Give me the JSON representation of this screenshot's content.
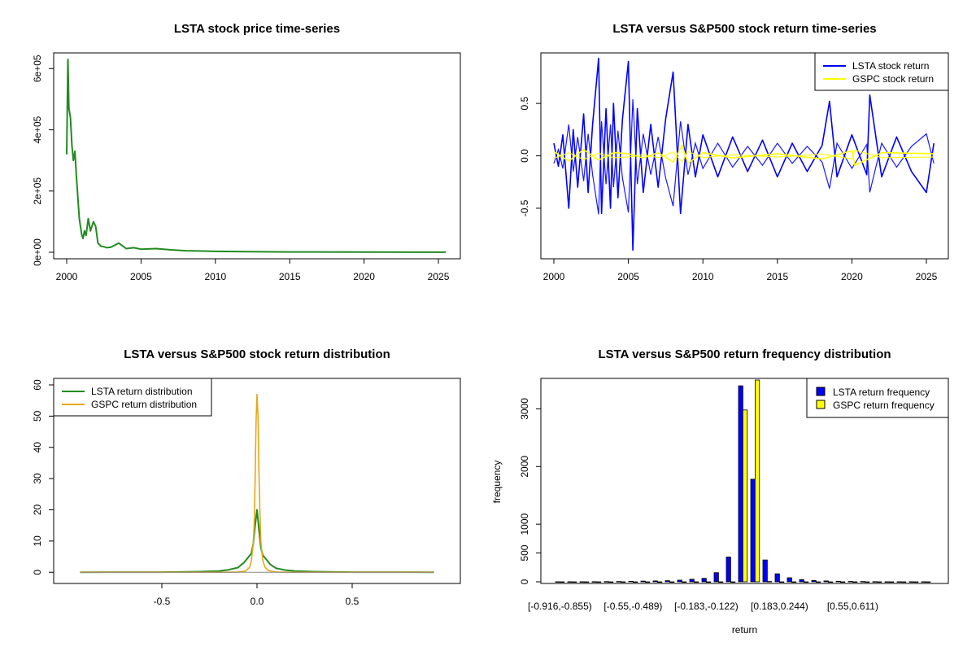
{
  "chart_data": [
    {
      "type": "line",
      "title": "LSTA stock price time-series",
      "xlabel": "",
      "ylabel": "",
      "xlim": [
        2000,
        2025.6
      ],
      "ylim": [
        0,
        630000
      ],
      "xticks": [
        2000,
        2005,
        2010,
        2015,
        2020,
        2025
      ],
      "xtick_labels": [
        "2000",
        "2005",
        "2010",
        "2015",
        "2020",
        "2025"
      ],
      "yticks": [
        0,
        200000,
        400000,
        600000
      ],
      "ytick_labels": [
        "0e+00",
        "2e+05",
        "4e+05",
        "6e+05"
      ],
      "grid": false,
      "series": [
        {
          "color": "#228B22",
          "x": [
            2000.0,
            2000.08,
            2000.15,
            2000.25,
            2000.35,
            2000.45,
            2000.55,
            2000.65,
            2000.75,
            2000.85,
            2001.0,
            2001.1,
            2001.2,
            2001.3,
            2001.45,
            2001.6,
            2001.8,
            2001.95,
            2002.1,
            2002.3,
            2002.5,
            2002.7,
            2003.0,
            2003.5,
            2004.0,
            2004.5,
            2005.0,
            2006.0,
            2007.0,
            2008.0,
            2010.0,
            2012.0,
            2015.0,
            2020.0,
            2025.5
          ],
          "y": [
            320000,
            630000,
            470000,
            440000,
            350000,
            300000,
            330000,
            250000,
            180000,
            110000,
            60000,
            45000,
            70000,
            55000,
            110000,
            70000,
            100000,
            85000,
            30000,
            20000,
            18000,
            15000,
            17000,
            30000,
            12000,
            15000,
            10000,
            12000,
            8000,
            5000,
            3000,
            2000,
            1000,
            500,
            300
          ]
        }
      ]
    },
    {
      "type": "line",
      "title": "LSTA versus S&P500 stock return time-series",
      "xlabel": "",
      "ylabel": "",
      "xlim": [
        2000,
        2025.6
      ],
      "ylim": [
        -0.92,
        0.92
      ],
      "xticks": [
        2000,
        2005,
        2010,
        2015,
        2020,
        2025
      ],
      "xtick_labels": [
        "2000",
        "2005",
        "2010",
        "2015",
        "2020",
        "2025"
      ],
      "yticks": [
        -0.5,
        0.0,
        0.5
      ],
      "ytick_labels": [
        "-0.5",
        "0.0",
        "0.5"
      ],
      "grid": false,
      "legend_position": "top-right",
      "series": [
        {
          "name": "LSTA stock return",
          "color": "#0000FF",
          "x": [
            2000.0,
            2000.3,
            2000.6,
            2001.0,
            2001.3,
            2001.6,
            2002.0,
            2002.3,
            2002.6,
            2003.0,
            2003.2,
            2003.5,
            2003.8,
            2004.0,
            2004.3,
            2004.6,
            2005.0,
            2005.3,
            2005.6,
            2006.0,
            2006.5,
            2007.0,
            2007.5,
            2008.0,
            2008.5,
            2009.0,
            2009.5,
            2010.0,
            2011.0,
            2012.0,
            2013.0,
            2014.0,
            2015.0,
            2016.0,
            2017.0,
            2018.0,
            2018.5,
            2019.0,
            2020.0,
            2021.0,
            2021.2,
            2022.0,
            2023.0,
            2024.0,
            2025.0,
            2025.5
          ],
          "y": [
            0.12,
            -0.1,
            0.2,
            -0.5,
            0.25,
            -0.3,
            0.4,
            -0.35,
            0.3,
            0.93,
            -0.55,
            0.45,
            -0.5,
            0.5,
            -0.4,
            0.35,
            0.9,
            -0.9,
            0.45,
            -0.35,
            0.3,
            -0.3,
            0.35,
            0.8,
            -0.55,
            0.3,
            -0.2,
            0.2,
            -0.2,
            0.18,
            -0.15,
            0.15,
            -0.2,
            0.12,
            -0.15,
            0.1,
            0.52,
            -0.2,
            0.2,
            -0.18,
            0.58,
            -0.2,
            0.18,
            -0.15,
            -0.35,
            0.12
          ]
        },
        {
          "name": "GSPC stock return",
          "color": "#FFFF00",
          "x": [
            2000.0,
            2001.0,
            2002.0,
            2003.0,
            2004.0,
            2005.0,
            2006.0,
            2007.0,
            2008.0,
            2008.6,
            2009.0,
            2010.0,
            2012.0,
            2015.0,
            2018.0,
            2020.0,
            2020.2,
            2022.0,
            2025.5
          ],
          "y": [
            0.04,
            -0.05,
            0.06,
            -0.04,
            0.03,
            0.02,
            -0.02,
            0.03,
            -0.06,
            0.1,
            -0.07,
            0.03,
            -0.02,
            0.02,
            -0.03,
            0.05,
            -0.09,
            0.03,
            0.02
          ]
        }
      ]
    },
    {
      "type": "line",
      "title": "LSTA versus S&P500 stock return distribution",
      "xlabel": "",
      "ylabel": "",
      "xlim": [
        -1.0,
        1.0
      ],
      "ylim": [
        -1.5,
        60
      ],
      "xticks": [
        -0.5,
        0.0,
        0.5
      ],
      "xtick_labels": [
        "-0.5",
        "0.0",
        "0.5"
      ],
      "yticks": [
        0,
        10,
        20,
        30,
        40,
        50,
        60
      ],
      "ytick_labels": [
        "0",
        "10",
        "20",
        "30",
        "40",
        "50",
        "60"
      ],
      "grid": false,
      "legend_position": "top-left",
      "series": [
        {
          "name": "LSTA return distribution",
          "color": "#228B22",
          "x": [
            -0.93,
            -0.5,
            -0.3,
            -0.2,
            -0.15,
            -0.1,
            -0.07,
            -0.05,
            -0.03,
            -0.02,
            -0.01,
            0.0,
            0.01,
            0.02,
            0.03,
            0.05,
            0.07,
            0.1,
            0.15,
            0.2,
            0.3,
            0.5,
            0.93
          ],
          "y": [
            0.0,
            0.05,
            0.2,
            0.4,
            0.8,
            1.5,
            3.0,
            4.5,
            6.0,
            9.0,
            15.0,
            20.0,
            14.0,
            8.0,
            5.5,
            4.0,
            2.5,
            1.3,
            0.7,
            0.4,
            0.2,
            0.05,
            0.0
          ]
        },
        {
          "name": "GSPC return distribution",
          "color": "#E6A817",
          "x": [
            -0.93,
            -0.15,
            -0.1,
            -0.06,
            -0.04,
            -0.03,
            -0.02,
            -0.015,
            -0.01,
            -0.005,
            0.0,
            0.005,
            0.01,
            0.015,
            0.02,
            0.03,
            0.04,
            0.06,
            0.1,
            0.15,
            0.93
          ],
          "y": [
            0.0,
            0.0,
            0.1,
            0.4,
            1.5,
            3.5,
            9.0,
            15.0,
            30.0,
            48.0,
            57.0,
            50.0,
            33.0,
            20.0,
            10.0,
            4.0,
            1.8,
            0.5,
            0.1,
            0.0,
            0.0
          ]
        }
      ]
    },
    {
      "type": "bar",
      "title": "LSTA versus S&P500 return frequency distribution",
      "xlabel": "return",
      "ylabel": "frequency",
      "ylim": [
        0,
        3500
      ],
      "yticks": [
        0,
        500,
        1000,
        2000,
        3000
      ],
      "ytick_labels": [
        "0",
        "500",
        "1000",
        "2000",
        "3000"
      ],
      "xtick_labels": [
        "[-0.916,-0.855)",
        "[-0.55,-0.489)",
        "[-0.183,-0.122)",
        "[0.183,0.244)",
        "[0.55,0.611)"
      ],
      "xtick_bin_index": [
        0,
        6,
        12,
        18,
        24
      ],
      "legend_position": "top-right",
      "bin_count": 31,
      "series": [
        {
          "name": "LSTA return frequency",
          "color": "#0000FF",
          "values": [
            1,
            1,
            2,
            3,
            4,
            6,
            8,
            12,
            15,
            20,
            30,
            45,
            60,
            160,
            430,
            3400,
            1780,
            380,
            140,
            70,
            40,
            22,
            15,
            10,
            7,
            5,
            3,
            2,
            2,
            1,
            1
          ]
        },
        {
          "name": "GSPC return frequency",
          "color": "#FFFF00",
          "values": [
            0,
            0,
            0,
            0,
            0,
            0,
            0,
            0,
            0,
            0,
            0,
            0,
            0,
            0,
            0,
            2980,
            3500,
            5,
            0,
            0,
            0,
            0,
            0,
            0,
            0,
            0,
            0,
            0,
            0,
            0,
            0
          ]
        }
      ]
    }
  ]
}
